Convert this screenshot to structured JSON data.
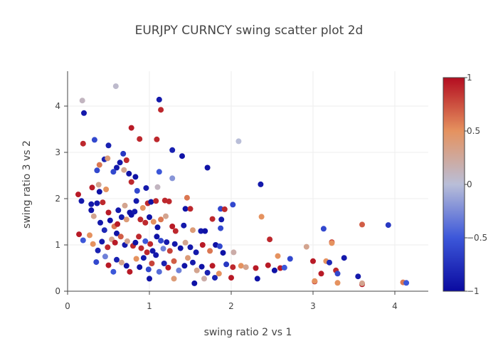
{
  "chart_data": {
    "type": "scatter",
    "title": "EURJPY CURNCY swing scatter plot 2d",
    "xlabel": "swing ratio 2 vs 1",
    "ylabel": "swing ratio 3 vs 2",
    "xlim": [
      0,
      4.4
    ],
    "ylim": [
      0,
      4.6
    ],
    "x_ticks": [
      "0",
      "1",
      "2",
      "3",
      "4"
    ],
    "y_ticks": [
      "0",
      "1",
      "2",
      "3",
      "4"
    ],
    "grid": true,
    "colorbar": {
      "range": [
        -1,
        1
      ],
      "tick_labels": [
        "1",
        "0.5",
        "0",
        "−0.5",
        "−1"
      ],
      "tick_values": [
        1,
        0.5,
        0,
        -0.5,
        -1
      ],
      "colorscale": [
        "#0a0aa0",
        "#3c57d9",
        "#b9bed8",
        "#e5925f",
        "#b30d20"
      ]
    },
    "points": [
      [
        0.18,
        4.12,
        0.1
      ],
      [
        0.2,
        3.85,
        -0.9
      ],
      [
        0.59,
        4.43,
        0.05
      ],
      [
        1.12,
        4.14,
        -0.9
      ],
      [
        1.14,
        3.92,
        0.9
      ],
      [
        0.19,
        3.19,
        0.9
      ],
      [
        0.33,
        3.27,
        -0.6
      ],
      [
        0.78,
        3.53,
        0.95
      ],
      [
        0.88,
        3.29,
        0.9
      ],
      [
        1.09,
        3.28,
        0.9
      ],
      [
        0.5,
        3.15,
        -0.85
      ],
      [
        1.28,
        3.05,
        -0.85
      ],
      [
        1.4,
        2.92,
        -0.95
      ],
      [
        2.09,
        3.24,
        0.0
      ],
      [
        0.68,
        2.97,
        -0.7
      ],
      [
        0.45,
        2.85,
        -0.85
      ],
      [
        0.49,
        2.87,
        0.4
      ],
      [
        0.36,
        2.61,
        -0.6
      ],
      [
        0.39,
        2.73,
        0.6
      ],
      [
        0.72,
        2.83,
        0.9
      ],
      [
        0.6,
        2.67,
        -0.9
      ],
      [
        0.64,
        2.78,
        -0.9
      ],
      [
        0.56,
        2.58,
        -0.6
      ],
      [
        0.69,
        2.62,
        0.3
      ],
      [
        0.75,
        2.54,
        -0.95
      ],
      [
        0.83,
        2.47,
        -0.95
      ],
      [
        1.12,
        2.58,
        -0.5
      ],
      [
        1.28,
        2.44,
        -0.2
      ],
      [
        1.71,
        2.67,
        -0.95
      ],
      [
        2.36,
        2.31,
        -0.9
      ],
      [
        0.3,
        2.24,
        0.95
      ],
      [
        0.38,
        2.3,
        0.3
      ],
      [
        0.39,
        2.15,
        -0.95
      ],
      [
        0.47,
        2.2,
        0.5
      ],
      [
        0.78,
        2.36,
        0.9
      ],
      [
        0.85,
        2.17,
        -0.6
      ],
      [
        0.96,
        2.23,
        -0.9
      ],
      [
        1.1,
        2.25,
        0.1
      ],
      [
        0.13,
        2.09,
        0.95
      ],
      [
        0.17,
        1.95,
        -0.9
      ],
      [
        0.29,
        1.88,
        -0.9
      ],
      [
        0.29,
        1.75,
        -0.95
      ],
      [
        0.36,
        1.9,
        -0.9
      ],
      [
        0.43,
        1.92,
        0.9
      ],
      [
        0.5,
        1.7,
        0.95
      ],
      [
        0.62,
        1.75,
        -0.9
      ],
      [
        0.7,
        1.85,
        0.3
      ],
      [
        0.78,
        1.65,
        -0.95
      ],
      [
        0.84,
        1.95,
        -0.9
      ],
      [
        0.92,
        1.8,
        0.5
      ],
      [
        0.98,
        1.9,
        0.9
      ],
      [
        1.02,
        1.93,
        -0.95
      ],
      [
        1.08,
        1.95,
        0.9
      ],
      [
        1.19,
        1.96,
        0.9
      ],
      [
        1.24,
        1.94,
        0.9
      ],
      [
        1.44,
        1.78,
        -0.95
      ],
      [
        1.46,
        2.02,
        0.6
      ],
      [
        1.5,
        1.78,
        0.9
      ],
      [
        1.77,
        1.56,
        0.9
      ],
      [
        1.87,
        1.78,
        -0.6
      ],
      [
        1.92,
        1.77,
        0.9
      ],
      [
        2.02,
        1.87,
        -0.6
      ],
      [
        2.37,
        1.61,
        0.5
      ],
      [
        3.6,
        1.44,
        0.7
      ],
      [
        3.92,
        1.43,
        -0.7
      ],
      [
        0.32,
        1.62,
        0.3
      ],
      [
        0.4,
        1.48,
        -0.9
      ],
      [
        0.45,
        1.32,
        -0.8
      ],
      [
        0.52,
        1.53,
        -0.95
      ],
      [
        0.57,
        1.4,
        0.6
      ],
      [
        0.61,
        1.45,
        0.95
      ],
      [
        0.66,
        1.6,
        -0.9
      ],
      [
        0.72,
        1.55,
        0.4
      ],
      [
        0.76,
        1.7,
        -0.95
      ],
      [
        0.82,
        1.72,
        -0.9
      ],
      [
        0.89,
        1.55,
        0.9
      ],
      [
        0.95,
        1.48,
        0.9
      ],
      [
        1.0,
        1.6,
        -0.95
      ],
      [
        1.05,
        1.5,
        0.5
      ],
      [
        1.1,
        1.38,
        -0.95
      ],
      [
        1.14,
        1.55,
        0.6
      ],
      [
        1.2,
        1.62,
        0.3
      ],
      [
        1.28,
        1.4,
        0.95
      ],
      [
        1.32,
        1.3,
        0.9
      ],
      [
        1.42,
        1.42,
        -0.9
      ],
      [
        1.53,
        1.32,
        0.4
      ],
      [
        1.63,
        1.3,
        -0.9
      ],
      [
        1.68,
        1.3,
        -0.95
      ],
      [
        1.88,
        1.55,
        -0.9
      ],
      [
        1.87,
        1.36,
        -0.6
      ],
      [
        2.47,
        1.12,
        0.9
      ],
      [
        3.13,
        1.35,
        -0.6
      ],
      [
        0.14,
        1.23,
        0.95
      ],
      [
        0.19,
        1.1,
        -0.5
      ],
      [
        0.27,
        1.21,
        0.5
      ],
      [
        0.31,
        1.02,
        0.5
      ],
      [
        0.37,
        0.88,
        -0.85
      ],
      [
        0.42,
        1.07,
        -0.9
      ],
      [
        0.49,
        0.95,
        0.9
      ],
      [
        0.54,
        1.12,
        0.3
      ],
      [
        0.58,
        1.05,
        0.95
      ],
      [
        0.6,
        1.25,
        -0.95
      ],
      [
        0.65,
        1.18,
        0.7
      ],
      [
        0.7,
        1.0,
        -0.9
      ],
      [
        0.73,
        1.08,
        0.3
      ],
      [
        0.8,
        0.98,
        0.9
      ],
      [
        0.83,
        1.05,
        -0.95
      ],
      [
        0.87,
        1.18,
        0.9
      ],
      [
        0.9,
        0.93,
        0.9
      ],
      [
        0.95,
        1.08,
        -0.5
      ],
      [
        0.97,
        0.84,
        0.9
      ],
      [
        1.01,
        1.02,
        0.9
      ],
      [
        1.04,
        0.87,
        -0.9
      ],
      [
        1.09,
        1.18,
        -0.95
      ],
      [
        1.14,
        1.09,
        -0.6
      ],
      [
        1.17,
        0.92,
        -0.3
      ],
      [
        1.21,
        1.06,
        -0.9
      ],
      [
        1.25,
        0.87,
        0.8
      ],
      [
        1.31,
        1.02,
        -0.9
      ],
      [
        1.38,
        0.93,
        -0.95
      ],
      [
        1.44,
        1.05,
        0.3
      ],
      [
        1.5,
        0.95,
        -0.9
      ],
      [
        1.57,
        0.84,
        -0.9
      ],
      [
        1.65,
        1.0,
        0.95
      ],
      [
        1.74,
        0.87,
        0.6
      ],
      [
        1.81,
        1.0,
        -0.95
      ],
      [
        1.86,
        0.97,
        -0.6
      ],
      [
        1.9,
        0.83,
        -0.95
      ],
      [
        2.03,
        0.84,
        0.2
      ],
      [
        2.92,
        0.96,
        0.3
      ],
      [
        3.23,
        1.06,
        0.8
      ],
      [
        3.23,
        1.04,
        0.5
      ],
      [
        0.35,
        0.63,
        -0.6
      ],
      [
        0.46,
        0.75,
        -0.3
      ],
      [
        0.5,
        0.56,
        0.95
      ],
      [
        0.56,
        0.42,
        -0.5
      ],
      [
        0.6,
        0.68,
        -0.85
      ],
      [
        0.66,
        0.62,
        0.3
      ],
      [
        0.72,
        0.55,
        -0.95
      ],
      [
        0.76,
        0.42,
        0.95
      ],
      [
        0.84,
        0.7,
        0.5
      ],
      [
        0.88,
        0.52,
        -0.95
      ],
      [
        0.93,
        0.72,
        -0.9
      ],
      [
        0.99,
        0.47,
        -0.6
      ],
      [
        1.03,
        0.6,
        0.8
      ],
      [
        1.08,
        0.78,
        -0.9
      ],
      [
        1.12,
        0.42,
        -0.4
      ],
      [
        1.18,
        0.6,
        -0.85
      ],
      [
        1.23,
        0.51,
        0.95
      ],
      [
        1.3,
        0.65,
        0.7
      ],
      [
        1.36,
        0.45,
        -0.3
      ],
      [
        1.43,
        0.55,
        -0.95
      ],
      [
        1.47,
        0.72,
        0.4
      ],
      [
        1.53,
        0.62,
        -0.9
      ],
      [
        1.58,
        0.45,
        0.3
      ],
      [
        1.64,
        0.53,
        -0.95
      ],
      [
        1.71,
        0.4,
        -0.85
      ],
      [
        1.77,
        0.55,
        0.95
      ],
      [
        1.85,
        0.38,
        0.5
      ],
      [
        1.94,
        0.58,
        -0.7
      ],
      [
        2.02,
        0.52,
        0.9
      ],
      [
        2.12,
        0.55,
        0.5
      ],
      [
        2.18,
        0.52,
        0.3
      ],
      [
        2.3,
        0.5,
        0.95
      ],
      [
        2.45,
        0.56,
        0.95
      ],
      [
        2.53,
        0.45,
        -0.95
      ],
      [
        2.57,
        0.76,
        0.5
      ],
      [
        2.6,
        0.5,
        0.95
      ],
      [
        2.65,
        0.51,
        -0.5
      ],
      [
        2.72,
        0.7,
        -0.6
      ],
      [
        3.0,
        0.65,
        0.95
      ],
      [
        3.1,
        0.38,
        0.95
      ],
      [
        3.16,
        0.65,
        0.5
      ],
      [
        3.2,
        0.62,
        -0.8
      ],
      [
        3.28,
        0.45,
        0.9
      ],
      [
        3.3,
        0.38,
        -0.6
      ],
      [
        3.38,
        0.72,
        -0.9
      ],
      [
        1.0,
        0.27,
        -0.95
      ],
      [
        1.3,
        0.27,
        0.4
      ],
      [
        1.55,
        0.17,
        -0.95
      ],
      [
        1.67,
        0.27,
        0.2
      ],
      [
        1.8,
        0.29,
        -0.85
      ],
      [
        2.0,
        0.29,
        0.95
      ],
      [
        2.32,
        0.27,
        -0.95
      ],
      [
        3.02,
        0.21,
        0.95
      ],
      [
        3.02,
        0.22,
        0.5
      ],
      [
        3.3,
        0.18,
        0.5
      ],
      [
        3.55,
        0.32,
        -0.9
      ],
      [
        3.6,
        0.15,
        0.95
      ],
      [
        3.6,
        0.17,
        0.3
      ],
      [
        4.1,
        0.19,
        0.6
      ],
      [
        4.14,
        0.18,
        -0.5
      ]
    ]
  }
}
